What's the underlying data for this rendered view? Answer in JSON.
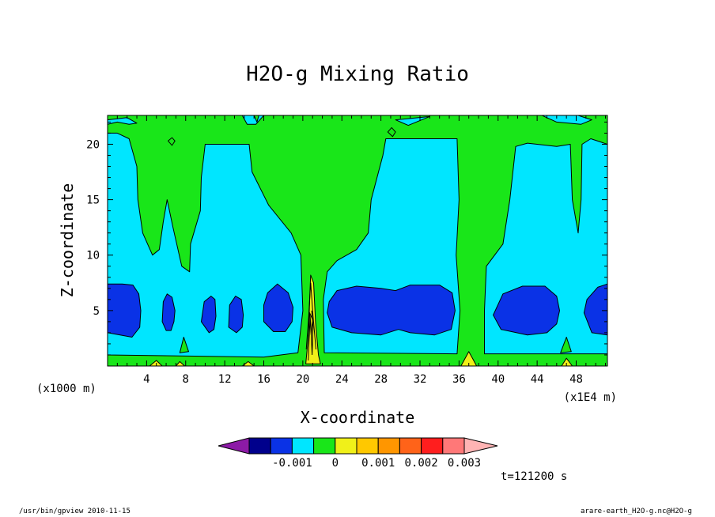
{
  "chart_data": {
    "type": "contour",
    "title": "H2O-g Mixing Ratio",
    "xlabel": "X-coordinate",
    "ylabel": "Z-coordinate",
    "x_unit_left": "(x1000 m)",
    "x_unit_right": "(x1E4 m)",
    "x_ticks": [
      "4",
      "8",
      "12",
      "16",
      "20",
      "24",
      "28",
      "32",
      "36",
      "40",
      "44",
      "48"
    ],
    "y_ticks": [
      "5",
      "10",
      "15",
      "20"
    ],
    "xlim": [
      0,
      51.2
    ],
    "ylim": [
      0,
      22.6
    ],
    "grid": false,
    "colorbar": {
      "colors": [
        "#8c1aa6",
        "#00008c",
        "#0a32e6",
        "#00e6ff",
        "#19e619",
        "#f0f019",
        "#ffc800",
        "#ff9600",
        "#ff6319",
        "#ff1e1e",
        "#ff7878",
        "#ffb4b4"
      ],
      "labels": [
        "-0.001",
        "0",
        "0.001",
        "0.002",
        "0.003"
      ]
    },
    "regions": [
      {
        "level": "0 to 0.0005",
        "color": "#19e619",
        "polygon": [
          [
            0,
            0
          ],
          [
            51.2,
            0
          ],
          [
            51.2,
            22.6
          ],
          [
            0,
            22.6
          ]
        ]
      },
      {
        "level": "-0.0005 to 0",
        "color": "#00e6ff",
        "polygon": [
          [
            0,
            1
          ],
          [
            16,
            0.8
          ],
          [
            19.5,
            1.2
          ],
          [
            20,
            5
          ],
          [
            19.8,
            10
          ],
          [
            18.8,
            12
          ],
          [
            16.5,
            14.5
          ],
          [
            14.8,
            17.5
          ],
          [
            14.5,
            20
          ],
          [
            12.5,
            20
          ],
          [
            10,
            20
          ],
          [
            9.6,
            17
          ],
          [
            9.5,
            14
          ],
          [
            8.5,
            11
          ],
          [
            8.4,
            8.5
          ],
          [
            7.6,
            9
          ],
          [
            6.7,
            12.5
          ],
          [
            6.1,
            15
          ],
          [
            5.7,
            13
          ],
          [
            5.3,
            10.5
          ],
          [
            4.6,
            10
          ],
          [
            3.6,
            12
          ],
          [
            3.1,
            15
          ],
          [
            3,
            18
          ],
          [
            2.2,
            20.5
          ],
          [
            1,
            21
          ],
          [
            0,
            21
          ]
        ]
      },
      {
        "level": "-0.0005 to 0",
        "color": "#00e6ff",
        "polygon": [
          [
            22.2,
            1.2
          ],
          [
            35.8,
            1.1
          ],
          [
            36.1,
            5
          ],
          [
            35.7,
            10
          ],
          [
            36,
            15
          ],
          [
            35.8,
            20.5
          ],
          [
            33,
            20.5
          ],
          [
            30,
            20.5
          ],
          [
            28.5,
            20.5
          ],
          [
            28.2,
            19
          ],
          [
            27,
            15
          ],
          [
            26.7,
            12
          ],
          [
            25.5,
            10.5
          ],
          [
            23.5,
            9.5
          ],
          [
            22.5,
            8.5
          ],
          [
            22.1,
            6
          ]
        ]
      },
      {
        "level": "-0.0005 to 0",
        "color": "#00e6ff",
        "polygon": [
          [
            38.6,
            1.1
          ],
          [
            51.2,
            1.1
          ],
          [
            51.2,
            20
          ],
          [
            49.5,
            20.5
          ],
          [
            48.6,
            20
          ],
          [
            48.5,
            15
          ],
          [
            48.2,
            12
          ],
          [
            47.6,
            15
          ],
          [
            47.4,
            20
          ],
          [
            46,
            19.8
          ],
          [
            43,
            20.1
          ],
          [
            41.8,
            19.8
          ],
          [
            41.2,
            15
          ],
          [
            40.5,
            11
          ],
          [
            38.8,
            9
          ],
          [
            38.6,
            5
          ]
        ]
      },
      {
        "level": "-0.0005 to 0",
        "color": "#00e6ff",
        "polygon": [
          [
            0,
            22.2
          ],
          [
            2,
            22.4
          ],
          [
            3,
            21.9
          ],
          [
            2.2,
            21.8
          ],
          [
            1,
            22
          ],
          [
            0,
            21.8
          ]
        ]
      },
      {
        "level": "-0.0005 to 0",
        "color": "#00e6ff",
        "polygon": [
          [
            13.8,
            22.6
          ],
          [
            16,
            22.6
          ],
          [
            15.2,
            21.8
          ],
          [
            14.3,
            21.8
          ]
        ]
      },
      {
        "level": "-0.0005 to 0",
        "color": "#00e6ff",
        "polygon": [
          [
            29.5,
            22.2
          ],
          [
            33,
            22.5
          ],
          [
            30.8,
            21.7
          ]
        ]
      },
      {
        "level": "-0.0005 to 0",
        "color": "#00e6ff",
        "polygon": [
          [
            44.5,
            22.6
          ],
          [
            48.2,
            22.6
          ],
          [
            49.6,
            22.2
          ],
          [
            48.5,
            21.8
          ],
          [
            46,
            22
          ]
        ]
      },
      {
        "level": "-0.001 to -0.0005",
        "color": "#0a32e6",
        "polygon": [
          [
            0,
            3
          ],
          [
            2.5,
            2.6
          ],
          [
            3.3,
            3.5
          ],
          [
            3.4,
            5
          ],
          [
            3.2,
            6.5
          ],
          [
            2.6,
            7.3
          ],
          [
            1.5,
            7.4
          ],
          [
            0,
            7.4
          ]
        ]
      },
      {
        "level": "-0.001 to -0.0005",
        "color": "#0a32e6",
        "polygon": [
          [
            5.6,
            4
          ],
          [
            6,
            3.2
          ],
          [
            6.5,
            3.2
          ],
          [
            6.8,
            4
          ],
          [
            6.9,
            5
          ],
          [
            6.6,
            6.2
          ],
          [
            6.1,
            6.5
          ],
          [
            5.7,
            5.8
          ]
        ]
      },
      {
        "level": "-0.001 to -0.0005",
        "color": "#0a32e6",
        "polygon": [
          [
            9.6,
            4
          ],
          [
            10.4,
            3
          ],
          [
            10.9,
            3.3
          ],
          [
            11.1,
            4.5
          ],
          [
            11,
            6
          ],
          [
            10.6,
            6.3
          ],
          [
            9.9,
            5.8
          ]
        ]
      },
      {
        "level": "-0.001 to -0.0005",
        "color": "#0a32e6",
        "polygon": [
          [
            12.4,
            3.5
          ],
          [
            13.2,
            3
          ],
          [
            13.8,
            3.5
          ],
          [
            13.9,
            4.6
          ],
          [
            13.7,
            6
          ],
          [
            13.1,
            6.3
          ],
          [
            12.5,
            5.5
          ]
        ]
      },
      {
        "level": "-0.001 to -0.0005",
        "color": "#0a32e6",
        "polygon": [
          [
            16,
            4
          ],
          [
            17,
            3.1
          ],
          [
            18.2,
            3.1
          ],
          [
            18.9,
            4
          ],
          [
            19,
            5.3
          ],
          [
            18.5,
            6.6
          ],
          [
            17.4,
            7.4
          ],
          [
            16.4,
            6.6
          ],
          [
            16,
            5.5
          ]
        ]
      },
      {
        "level": "-0.001 to -0.0005",
        "color": "#0a32e6",
        "polygon": [
          [
            22.5,
            4.8
          ],
          [
            23,
            3.5
          ],
          [
            25,
            3
          ],
          [
            28,
            2.8
          ],
          [
            29.8,
            3.3
          ],
          [
            31,
            3
          ],
          [
            33.5,
            2.8
          ],
          [
            35.2,
            3.3
          ],
          [
            35.6,
            5
          ],
          [
            35.3,
            6.6
          ],
          [
            34,
            7.3
          ],
          [
            31,
            7.3
          ],
          [
            29.5,
            6.8
          ],
          [
            28,
            7
          ],
          [
            25.5,
            7.2
          ],
          [
            23.5,
            6.8
          ],
          [
            22.7,
            5.8
          ]
        ]
      },
      {
        "level": "-0.001 to -0.0005",
        "color": "#0a32e6",
        "polygon": [
          [
            39.5,
            4.6
          ],
          [
            40.3,
            3.3
          ],
          [
            43,
            2.8
          ],
          [
            45,
            3
          ],
          [
            46,
            3.8
          ],
          [
            46.3,
            5
          ],
          [
            46,
            6.3
          ],
          [
            44.8,
            7.2
          ],
          [
            42.5,
            7.2
          ],
          [
            40.5,
            6.5
          ]
        ]
      },
      {
        "level": "-0.001 to -0.0005",
        "color": "#0a32e6",
        "polygon": [
          [
            48.8,
            4.8
          ],
          [
            49.6,
            3
          ],
          [
            51.2,
            2.8
          ],
          [
            51.2,
            7.4
          ],
          [
            50.2,
            7.1
          ],
          [
            49.1,
            6
          ]
        ]
      },
      {
        "level": "0.0005 to 0.001",
        "color": "#f0f019",
        "polygon": [
          [
            20.3,
            0.2
          ],
          [
            20.6,
            3
          ],
          [
            20.7,
            6
          ],
          [
            20.8,
            8.2
          ],
          [
            21.1,
            7.5
          ],
          [
            21.3,
            4
          ],
          [
            21.6,
            1
          ],
          [
            21.8,
            0.2
          ]
        ]
      },
      {
        "level": "0.0005 to 0.001",
        "color": "#f0f019",
        "polygon": [
          [
            36.2,
            0
          ],
          [
            37,
            1.3
          ],
          [
            37.5,
            0.5
          ],
          [
            37.8,
            0
          ]
        ]
      },
      {
        "level": "0.0005 to 0.001",
        "color": "#f0f019",
        "polygon": [
          [
            4.3,
            0
          ],
          [
            5,
            0.5
          ],
          [
            5.6,
            0
          ]
        ]
      },
      {
        "level": "0.0005 to 0.001",
        "color": "#f0f019",
        "polygon": [
          [
            7,
            0
          ],
          [
            7.4,
            0.4
          ],
          [
            7.9,
            0
          ]
        ]
      },
      {
        "level": "0.0005 to 0.001",
        "color": "#f0f019",
        "polygon": [
          [
            13.8,
            0
          ],
          [
            14.4,
            0.4
          ],
          [
            15,
            0
          ]
        ]
      },
      {
        "level": "0.0005 to 0.001",
        "color": "#f0f019",
        "polygon": [
          [
            46.5,
            0
          ],
          [
            47,
            0.7
          ],
          [
            47.6,
            0
          ]
        ]
      },
      {
        "level": "0.0005 to 0.001",
        "color": "#f0f019",
        "polygon": [
          [
            20.7,
            4.8
          ],
          [
            20.85,
            2.8
          ],
          [
            21,
            4.2
          ]
        ]
      },
      {
        "level": "0 to 0.0005",
        "color": "#19e619",
        "polygon": [
          [
            15,
            22.6
          ],
          [
            15.5,
            22.6
          ],
          [
            15.3,
            22
          ]
        ]
      },
      {
        "level": "0 to 0.0005",
        "color": "#19e619",
        "polygon": [
          [
            6.2,
            20.3
          ],
          [
            6.6,
            19.9
          ],
          [
            6.9,
            20.3
          ],
          [
            6.6,
            20.6
          ]
        ]
      },
      {
        "level": "0 to 0.0005",
        "color": "#19e619",
        "polygon": [
          [
            28.7,
            21.1
          ],
          [
            29.2,
            20.7
          ],
          [
            29.5,
            21.1
          ],
          [
            29.1,
            21.5
          ]
        ]
      },
      {
        "level": "0 to 0.0005",
        "color": "#19e619",
        "polygon": [
          [
            7.4,
            1.2
          ],
          [
            7.8,
            2.6
          ],
          [
            8.3,
            1.3
          ]
        ]
      },
      {
        "level": "0 to 0.0005",
        "color": "#19e619",
        "polygon": [
          [
            46.4,
            1.2
          ],
          [
            47,
            2.6
          ],
          [
            47.5,
            1.3
          ]
        ]
      }
    ],
    "contour_lines": [
      [
        [
          20.55,
          0.5
        ],
        [
          20.65,
          2.5
        ],
        [
          20.75,
          4.5
        ],
        [
          20.85,
          3
        ],
        [
          20.95,
          1
        ],
        [
          21.05,
          3.5
        ],
        [
          20.9,
          5
        ]
      ],
      [
        [
          20.35,
          1.5
        ],
        [
          20.6,
          4.5
        ],
        [
          20.8,
          7.5
        ],
        [
          21.05,
          4.5
        ],
        [
          21.35,
          1.5
        ]
      ]
    ],
    "time_label": "t=121200 s",
    "footer_left": "/usr/bin/gpview  2010-11-15",
    "footer_right": "arare-earth_H2O-g.nc@H2O-g"
  }
}
